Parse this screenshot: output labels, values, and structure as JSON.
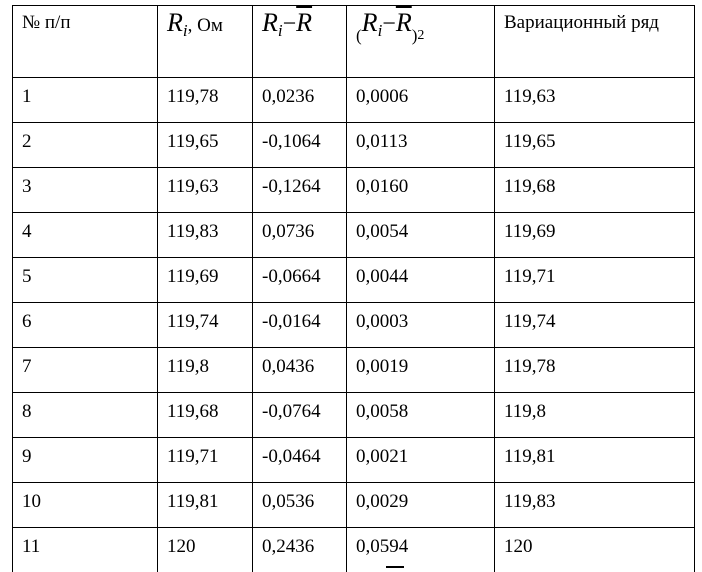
{
  "table": {
    "header": [
      [
        "№ п/п"
      ],
      [
        "R",
        "i",
        ", Ом"
      ],
      [
        "R",
        "i",
        "−",
        "R"
      ],
      [
        "(",
        "R",
        "i",
        "−",
        "R",
        ")",
        "2"
      ],
      [
        "Вариационный ряд"
      ]
    ],
    "rows": [
      [
        "1",
        "119,78",
        "0,0236",
        "0,0006",
        "119,63"
      ],
      [
        "2",
        "119,65",
        "-0,1064",
        "0,0113",
        "119,65"
      ],
      [
        "3",
        "119,63",
        "-0,1264",
        "0,0160",
        "119,68"
      ],
      [
        "4",
        "119,83",
        "0,0736",
        "0,0054",
        "119,69"
      ],
      [
        "5",
        "119,69",
        "-0,0664",
        "0,0044",
        "119,71"
      ],
      [
        "6",
        "119,74",
        "-0,0164",
        "0,0003",
        "119,74"
      ],
      [
        "7",
        "119,8",
        "0,0436",
        "0,0019",
        "119,78"
      ],
      [
        "8",
        "119,68",
        "-0,0764",
        "0,0058",
        "119,8"
      ],
      [
        "9",
        "119,71",
        "-0,0464",
        "0,0021",
        "119,81"
      ],
      [
        "10",
        "119,81",
        "0,0536",
        "0,0029",
        "119,83"
      ],
      [
        "11",
        "120",
        "0,2436",
        "0,0594",
        "120"
      ]
    ]
  }
}
